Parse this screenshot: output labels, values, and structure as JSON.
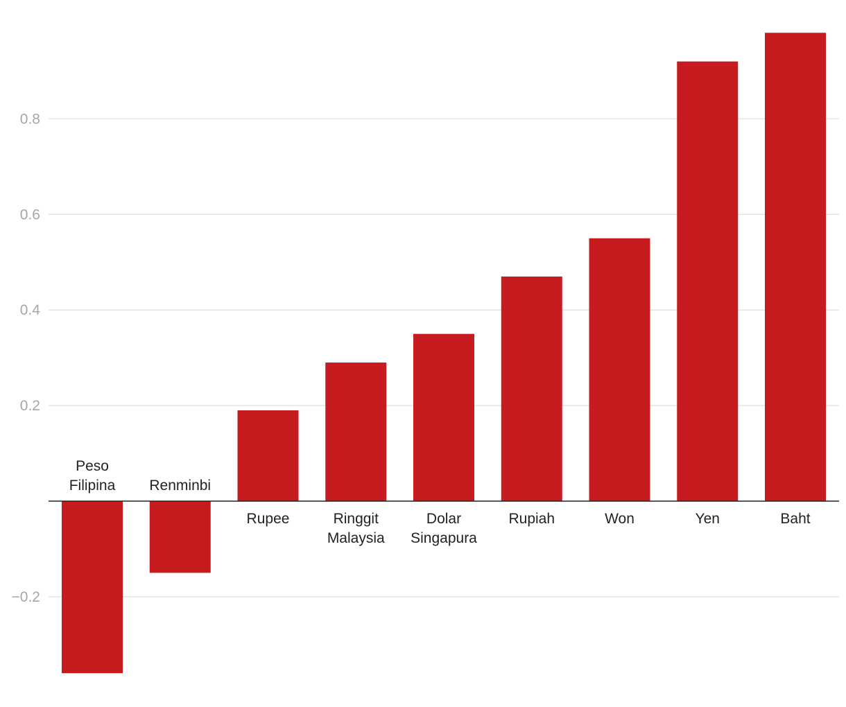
{
  "chart_data": {
    "type": "bar",
    "categories": [
      [
        "Peso",
        "Filipina"
      ],
      [
        "Renminbi"
      ],
      [
        "Rupee"
      ],
      [
        "Ringgit",
        "Malaysia"
      ],
      [
        "Dolar",
        "Singapura"
      ],
      [
        "Rupiah"
      ],
      [
        "Won"
      ],
      [
        "Yen"
      ],
      [
        "Baht"
      ]
    ],
    "values": [
      -0.36,
      -0.15,
      0.19,
      0.29,
      0.35,
      0.47,
      0.55,
      0.92,
      0.98
    ],
    "yticks": [
      -0.2,
      0.2,
      0.4,
      0.6,
      0.8
    ],
    "ytick_labels": [
      "−0.2",
      "0.2",
      "0.4",
      "0.6",
      "0.8"
    ],
    "ylim": [
      -0.4,
      1.0
    ],
    "grid": true,
    "colors": {
      "bar": "#c71c1f",
      "grid": "#e3e3e3",
      "axis": "#222222"
    },
    "title": "",
    "xlabel": "",
    "ylabel": ""
  }
}
